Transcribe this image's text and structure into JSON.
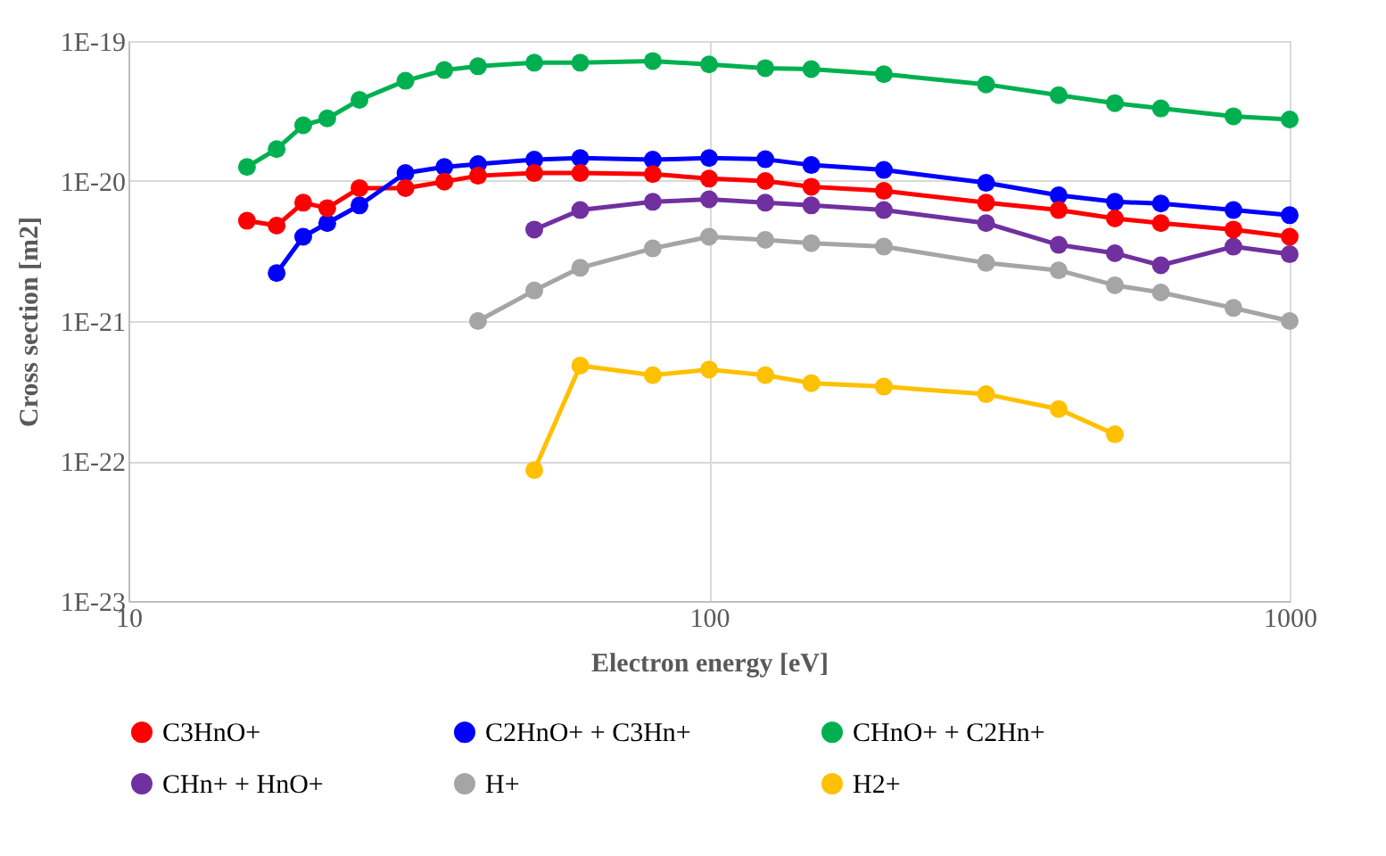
{
  "chart_data": {
    "type": "line",
    "xlabel": "Electron energy [eV]",
    "ylabel": "Cross section [m2]",
    "log": "xy",
    "grid": true,
    "legend": "bottom",
    "marker": "circle",
    "line_style": "solid",
    "xlim": [
      10,
      1000
    ],
    "xticks": [
      10,
      100,
      1000
    ],
    "ylim": [
      1e-23,
      1e-19
    ],
    "yticks": [
      {
        "value": 1e-23,
        "label": "1E-23"
      },
      {
        "value": 1e-22,
        "label": "1E-22"
      },
      {
        "value": 1e-21,
        "label": "1E-21"
      },
      {
        "value": 1e-20,
        "label": "1E-20"
      },
      {
        "value": 1e-19,
        "label": "1E-19"
      }
    ],
    "series": [
      {
        "name": "C3HnO+",
        "color": "#ff0000",
        "x": [
          16,
          18,
          20,
          22,
          25,
          30,
          35,
          40,
          50,
          60,
          80,
          100,
          125,
          150,
          200,
          300,
          400,
          500,
          600,
          800,
          1000
        ],
        "values": [
          5.2e-21,
          4.8e-21,
          7e-21,
          6.4e-21,
          8.9e-21,
          8.9e-21,
          9.9e-21,
          1.09e-20,
          1.14e-20,
          1.14e-20,
          1.12e-20,
          1.04e-20,
          1e-20,
          9.1e-21,
          8.5e-21,
          7e-21,
          6.2e-21,
          5.4e-21,
          5e-21,
          4.5e-21,
          4e-21
        ]
      },
      {
        "name": "C2HnO+ + C3Hn+",
        "color": "#0000ff",
        "x": [
          18,
          20,
          22,
          25,
          30,
          35,
          40,
          50,
          60,
          80,
          100,
          125,
          150,
          200,
          300,
          400,
          500,
          600,
          800,
          1000
        ],
        "values": [
          2.2e-21,
          4e-21,
          5e-21,
          6.7e-21,
          1.14e-20,
          1.26e-20,
          1.32e-20,
          1.42e-20,
          1.46e-20,
          1.42e-20,
          1.46e-20,
          1.43e-20,
          1.3e-20,
          1.2e-20,
          9.7e-21,
          7.9e-21,
          7.1e-21,
          6.9e-21,
          6.2e-21,
          5.7e-21
        ]
      },
      {
        "name": "CHnO+ + C2Hn+",
        "color": "#00b050",
        "x": [
          16,
          18,
          20,
          22,
          25,
          30,
          35,
          40,
          50,
          60,
          80,
          100,
          125,
          150,
          200,
          300,
          400,
          500,
          600,
          800,
          1000
        ],
        "values": [
          1.26e-20,
          1.69e-20,
          2.5e-20,
          2.8e-20,
          3.8e-20,
          5.2e-20,
          6.2e-20,
          6.6e-20,
          7e-20,
          7e-20,
          7.2e-20,
          6.8e-20,
          6.4e-20,
          6.3e-20,
          5.8e-20,
          4.9e-20,
          4.1e-20,
          3.6e-20,
          3.3e-20,
          2.9e-20,
          2.75e-20
        ]
      },
      {
        "name": "CHn+ + HnO+",
        "color": "#7030a0",
        "x": [
          50,
          60,
          80,
          100,
          125,
          150,
          200,
          300,
          400,
          500,
          600,
          800,
          1000
        ],
        "values": [
          4.5e-21,
          6.2e-21,
          7.1e-21,
          7.4e-21,
          7e-21,
          6.7e-21,
          6.2e-21,
          5e-21,
          3.5e-21,
          3.05e-21,
          2.5e-21,
          3.4e-21,
          3e-21
        ]
      },
      {
        "name": "H+",
        "color": "#a5a5a5",
        "x": [
          40,
          50,
          60,
          80,
          100,
          125,
          150,
          200,
          300,
          400,
          500,
          600,
          800,
          1000
        ],
        "values": [
          1e-21,
          1.65e-21,
          2.4e-21,
          3.3e-21,
          4e-21,
          3.8e-21,
          3.6e-21,
          3.4e-21,
          2.6e-21,
          2.3e-21,
          1.8e-21,
          1.6e-21,
          1.24e-21,
          1e-21
        ]
      },
      {
        "name": "H2+",
        "color": "#ffc000",
        "x": [
          50,
          60,
          80,
          100,
          125,
          150,
          200,
          300,
          400,
          500
        ],
        "values": [
          8.6e-23,
          4.8e-22,
          4.1e-22,
          4.5e-22,
          4.1e-22,
          3.6e-22,
          3.4e-22,
          3e-22,
          2.35e-22,
          1.55e-22
        ]
      }
    ]
  }
}
